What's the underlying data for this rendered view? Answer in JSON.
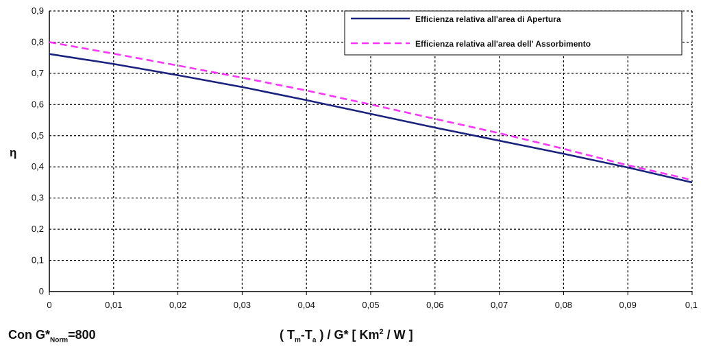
{
  "chart_data": {
    "type": "line",
    "x": [
      0,
      0.01,
      0.02,
      0.03,
      0.04,
      0.05,
      0.06,
      0.07,
      0.08,
      0.09,
      0.1
    ],
    "series": [
      {
        "name": "Efficienza relativa all'area di Apertura",
        "values": [
          0.762,
          0.73,
          0.694,
          0.656,
          0.614,
          0.57,
          0.526,
          0.484,
          0.442,
          0.398,
          0.35
        ],
        "color": "#1a237e",
        "style": "solid"
      },
      {
        "name": "Efficienza relativa all'area dell' Assorbimento",
        "values": [
          0.8,
          0.763,
          0.725,
          0.686,
          0.645,
          0.6,
          0.554,
          0.508,
          0.458,
          0.405,
          0.358
        ],
        "color": "#ff33ff",
        "style": "dashed"
      }
    ],
    "x_ticks": [
      "0",
      "0,01",
      "0,02",
      "0,03",
      "0,04",
      "0,05",
      "0,06",
      "0,07",
      "0,08",
      "0,09",
      "0,1"
    ],
    "y_ticks": [
      "0",
      "0,1",
      "0,2",
      "0,3",
      "0,4",
      "0,5",
      "0,6",
      "0,7",
      "0,8",
      "0,9"
    ],
    "xlim": [
      0,
      0.1
    ],
    "ylim": [
      0,
      0.9
    ],
    "ylabel": "η",
    "grid": true,
    "legend_position": "top-right"
  },
  "footer": {
    "condition_prefix": "Con G*",
    "condition_sub": "Norm",
    "condition_suffix": "=800",
    "xlabel_open": "( T",
    "xlabel_sub_m": "m",
    "xlabel_mid": "-T",
    "xlabel_sub_a": "a",
    "xlabel_after": " ) / G* [ Km",
    "xlabel_sup": "2",
    "xlabel_close": " / W ]"
  }
}
